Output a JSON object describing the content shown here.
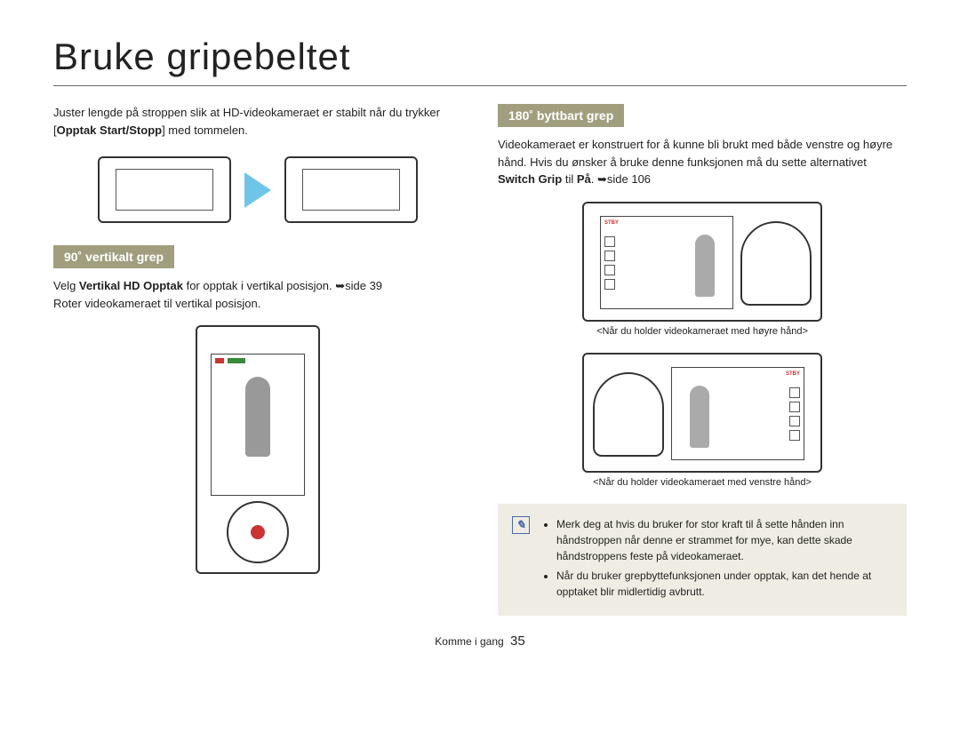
{
  "title": "Bruke gripebeltet",
  "left": {
    "intro_pre": "Juster lengde på stroppen slik at HD-videokameraet er stabilt når du trykker [",
    "intro_bold": "Opptak Start/Stopp",
    "intro_post": "] med tommelen.",
    "section_label": "90˚ vertikalt grep",
    "body_pre": "Velg ",
    "body_bold": "Vertikal HD Opptak",
    "body_mid": " for opptak i vertikal posisjon. ➥side 39",
    "body_line2": "Roter videokameraet til vertikal posisjon."
  },
  "right": {
    "section_label": "180˚ byttbart grep",
    "body_pre": "Videokameraet er konstruert for å kunne bli brukt med både venstre og høyre hånd. Hvis du ønsker å bruke denne funksjonen må du sette alternativet ",
    "body_bold": "Switch Grip",
    "body_mid": " til ",
    "body_bold2": "På",
    "body_post": ". ➥side 106",
    "caption1": "<Når du holder videokameraet med høyre hånd>",
    "caption2": "<Når du holder videokameraet med venstre hånd>"
  },
  "note": {
    "bullet1": "Merk deg at hvis du bruker for stor kraft til å sette hånden inn håndstroppen når denne er strammet for mye, kan dette skade håndstroppens feste på videokameraet.",
    "bullet2": "Når du bruker grepbyttefunksjonen under opptak, kan det hende at opptaket blir midlertidig avbrutt."
  },
  "footer": {
    "text": "Komme i gang",
    "page": "35"
  },
  "colors": {
    "label_bg": "#a19e7e",
    "arrow": "#6fc5e8",
    "note_bg": "#efede3",
    "note_icon": "#4a6aa5"
  }
}
